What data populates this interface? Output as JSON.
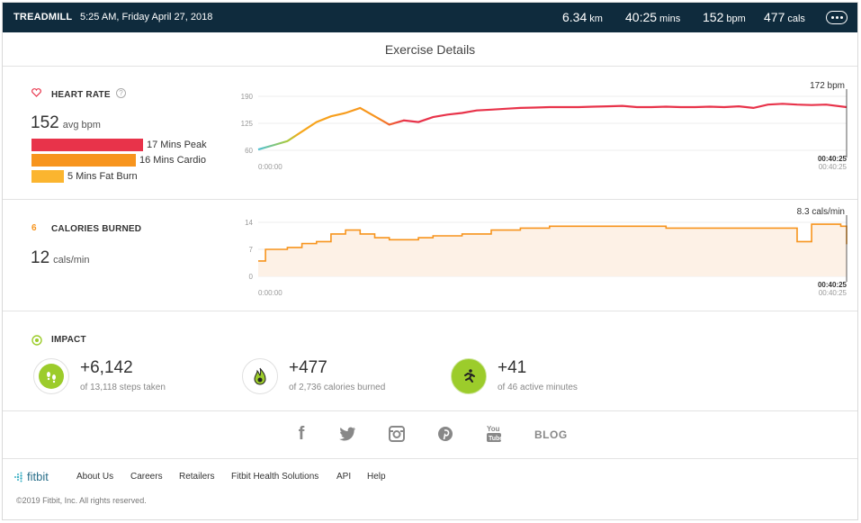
{
  "topbar": {
    "title": "TREADMILL",
    "datetime": "5:25 AM, Friday April 27, 2018",
    "stats": [
      {
        "value": "6.34",
        "unit": "km"
      },
      {
        "value": "40:25",
        "unit": "mins"
      },
      {
        "value": "152",
        "unit": "bpm"
      },
      {
        "value": "477",
        "unit": "cals"
      }
    ],
    "more_icon": "ellipsis-icon"
  },
  "page_title": "Exercise Details",
  "heart_rate": {
    "label": "HEART RATE",
    "icon": "heart-icon",
    "help_icon": "question-icon",
    "help_text": "?",
    "avg_value": "152",
    "avg_unit": "avg bpm",
    "zones": [
      {
        "label": "17 Mins Peak",
        "color": "#e8334a"
      },
      {
        "label": "16 Mins Cardio",
        "color": "#f7941d"
      },
      {
        "label": "5 Mins Fat Burn",
        "color": "#fbb52f"
      }
    ],
    "peak_label": "172 bpm",
    "start_time": "0:00:00",
    "end_time_bold": "00:40:25",
    "end_time": "00:40:25",
    "y_ticks": [
      "190",
      "125",
      "60"
    ]
  },
  "calories": {
    "label": "CALORIES BURNED",
    "icon": "flame-icon",
    "icon_glyph": "6",
    "value": "12",
    "unit": "cals/min",
    "peak_label": "8.3 cals/min",
    "start_time": "0:00:00",
    "end_time_bold": "00:40:25",
    "end_time": "00:40:25",
    "y_ticks": [
      "14",
      "7",
      "0"
    ]
  },
  "impact": {
    "label": "IMPACT",
    "icon": "target-icon",
    "items": [
      {
        "icon": "footsteps-icon",
        "value": "+6,142",
        "sub": "of 13,118 steps taken"
      },
      {
        "icon": "flame-icon",
        "value": "+477",
        "sub": "of 2,736 calories burned"
      },
      {
        "icon": "running-person-icon",
        "value": "+41",
        "sub": "of 46 active minutes"
      }
    ]
  },
  "social": {
    "facebook": "f",
    "blog": "BLOG"
  },
  "footer": {
    "logo_text": "fitbit",
    "links": [
      "About Us",
      "Careers",
      "Retailers",
      "Fitbit Health Solutions",
      "API",
      "Help"
    ],
    "copyright": "©2019 Fitbit, Inc. All rights reserved."
  },
  "chart_data": [
    {
      "type": "line",
      "title": "HEART RATE",
      "xlabel": "",
      "ylabel": "",
      "ylim": [
        60,
        190
      ],
      "xlim": [
        "0:00:00",
        "00:40:25"
      ],
      "grid": true,
      "series": [
        {
          "values_note_free": true,
          "x_minutes": [
            0,
            1,
            2,
            3,
            4,
            5,
            6,
            7,
            8,
            9,
            10,
            11,
            12,
            13,
            14,
            15,
            16,
            17,
            18,
            19,
            20,
            21,
            22,
            23,
            24,
            25,
            26,
            27,
            28,
            29,
            30,
            31,
            32,
            33,
            34,
            35,
            36,
            37,
            38,
            39,
            40.4
          ],
          "y_bpm": [
            62,
            72,
            82,
            105,
            128,
            142,
            150,
            162,
            142,
            122,
            132,
            128,
            140,
            146,
            150,
            156,
            158,
            160,
            162,
            163,
            164,
            164,
            164,
            165,
            166,
            167,
            164,
            164,
            165,
            164,
            164,
            165,
            164,
            166,
            162,
            170,
            172,
            170,
            169,
            170,
            164
          ]
        }
      ],
      "annotations": [
        "172 bpm"
      ]
    },
    {
      "type": "area",
      "title": "CALORIES BURNED",
      "xlabel": "",
      "ylabel": "",
      "ylim": [
        0,
        14
      ],
      "xlim": [
        "0:00:00",
        "00:40:25"
      ],
      "grid": true,
      "series": [
        {
          "x_minutes": [
            0,
            0.5,
            2,
            3,
            4,
            5,
            6,
            7,
            8,
            9,
            10,
            11,
            12,
            14,
            16,
            18,
            20,
            22,
            24,
            26,
            28,
            30,
            32,
            34,
            36,
            37,
            38,
            39,
            40,
            40.4
          ],
          "y_cals": [
            4,
            7,
            7.5,
            8.5,
            9,
            11,
            12,
            11,
            10,
            9.5,
            9.5,
            10,
            10.5,
            11,
            12,
            12.5,
            13,
            13,
            13,
            13,
            12.5,
            12.5,
            12.5,
            12.5,
            12.5,
            9,
            13.5,
            13.5,
            13,
            8.3
          ]
        }
      ],
      "annotations": [
        "8.3 cals/min"
      ]
    }
  ]
}
